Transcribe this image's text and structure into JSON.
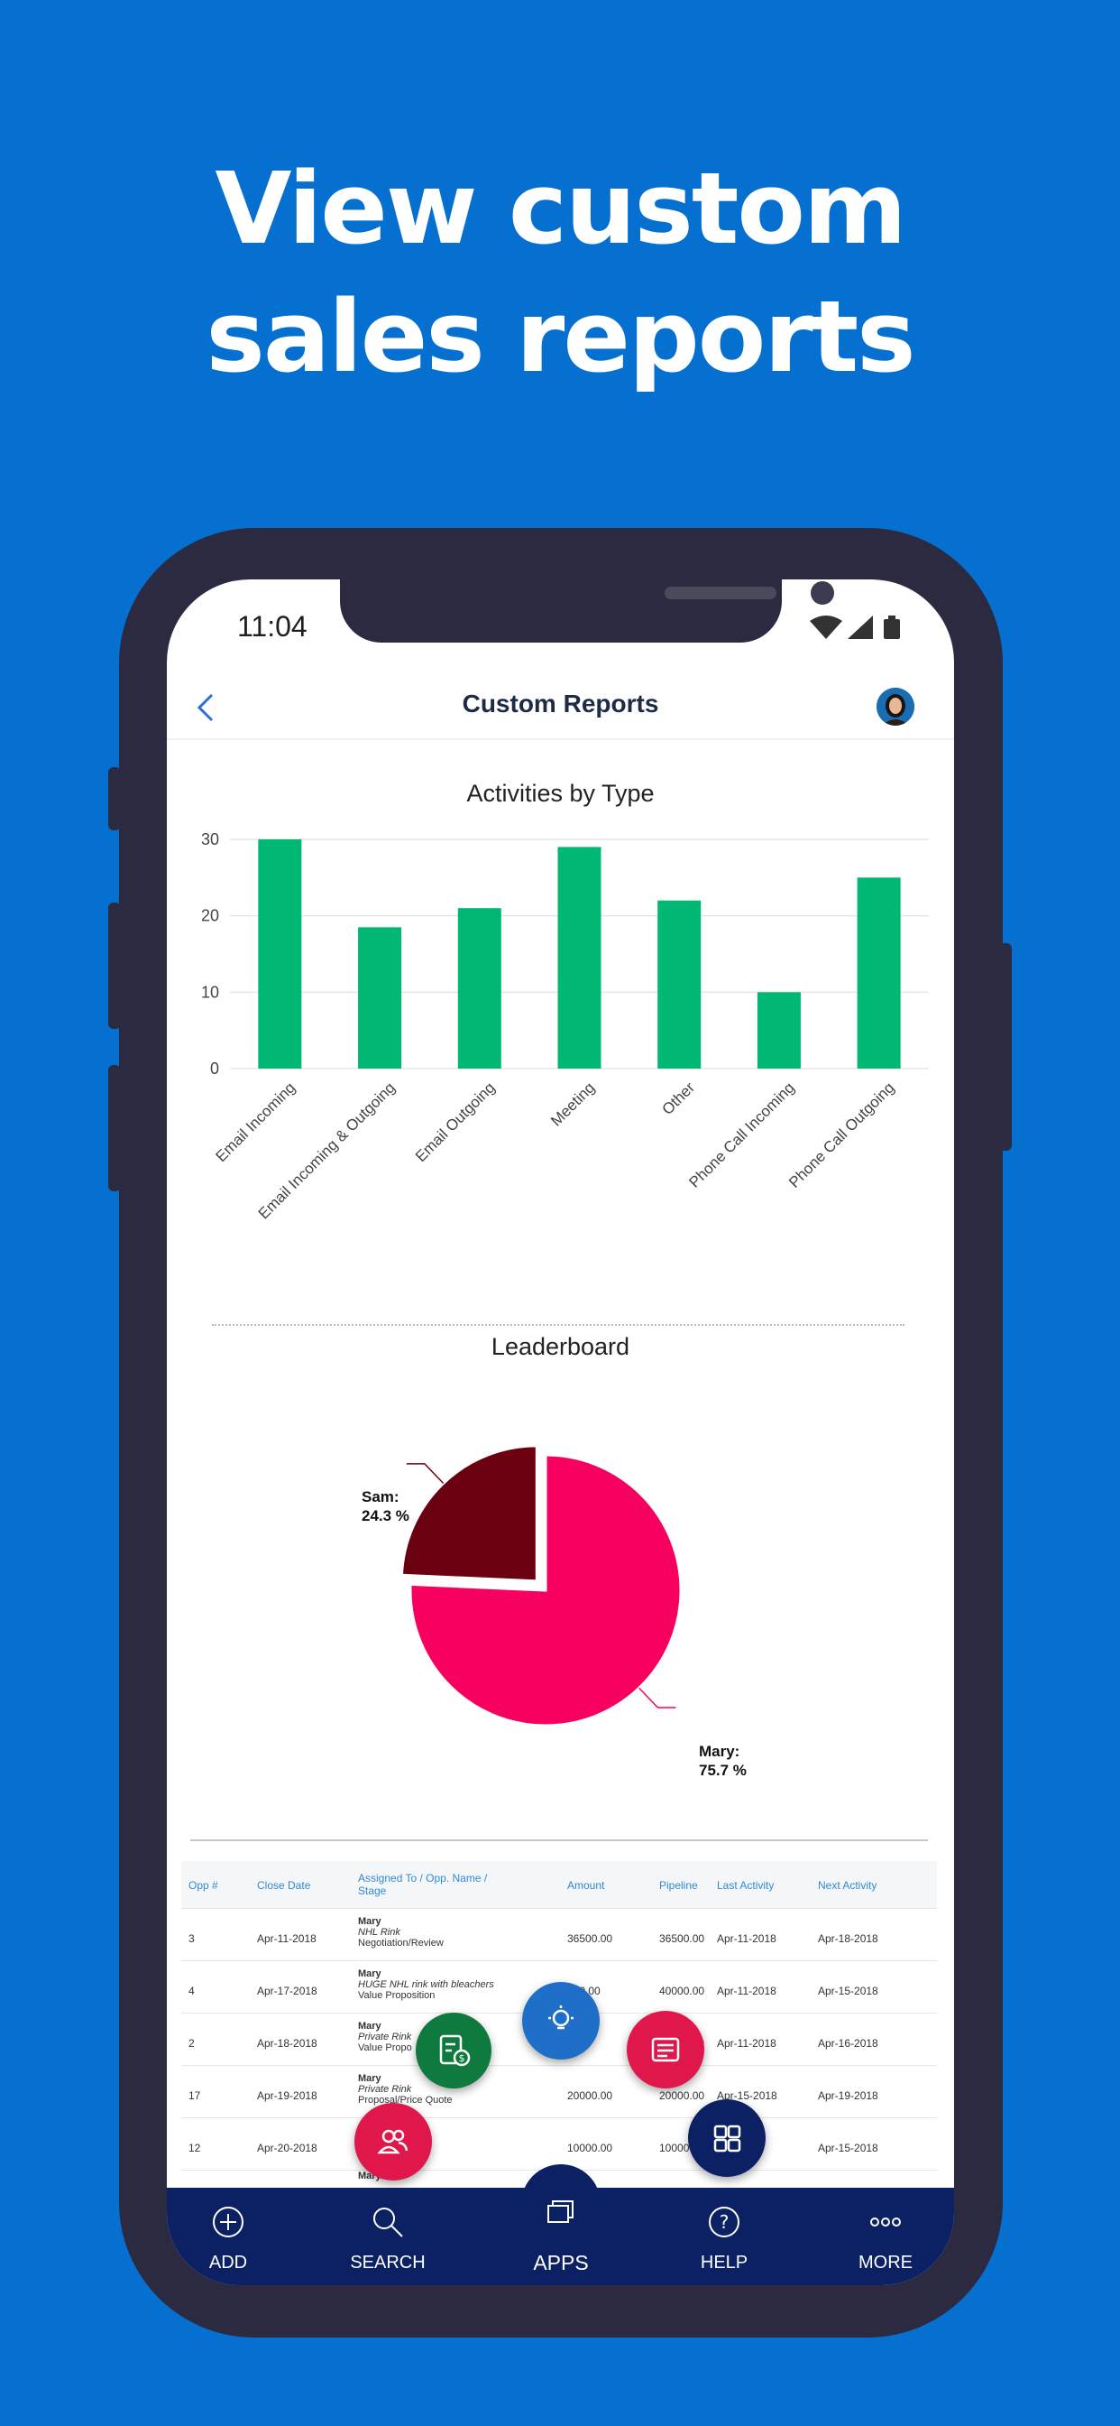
{
  "headline": {
    "line1": "View custom",
    "line2": "sales reports"
  },
  "status_bar": {
    "time": "11:04"
  },
  "app_bar": {
    "title": "Custom Reports"
  },
  "chart_data": [
    {
      "type": "bar",
      "title": "Activities by Type",
      "categories": [
        "Email Incoming",
        "Email Incoming & Outgoing",
        "Email Outgoing",
        "Meeting",
        "Other",
        "Phone Call Incoming",
        "Phone Call Outgoing"
      ],
      "values": [
        30,
        18.5,
        21,
        29,
        22,
        10,
        25
      ],
      "ylim": [
        0,
        30
      ],
      "yticks": [
        "0",
        "10",
        "20",
        "30"
      ],
      "color": "#00b874",
      "grid": true
    },
    {
      "type": "pie",
      "title": "Leaderboard",
      "labels": [
        "Sam:",
        "Mary:"
      ],
      "values": [
        24.3,
        75.7
      ],
      "value_labels": [
        "24.3 %",
        "75.7 %"
      ],
      "colors": [
        "#6b0010",
        "#f70160"
      ]
    }
  ],
  "table": {
    "headers": [
      "Opp #",
      "Close Date",
      "Assigned To / Opp. Name / Stage",
      "Amount",
      "Pipeline",
      "Last Activity",
      "Next Activity"
    ],
    "rows": [
      {
        "opp": "3",
        "close": "Apr-11-2018",
        "name": "Mary",
        "opp_name": "NHL Rink",
        "stage": "Negotiation/Review",
        "amount": "36500.00",
        "pipeline": "36500.00",
        "last": "Apr-11-2018",
        "next": "Apr-18-2018"
      },
      {
        "opp": "4",
        "close": "Apr-17-2018",
        "name": "Mary",
        "opp_name": "HUGE NHL rink with bleachers",
        "stage": "Value Proposition",
        "amount": "100.00",
        "pipeline": "40000.00",
        "last": "Apr-11-2018",
        "next": "Apr-15-2018"
      },
      {
        "opp": "2",
        "close": "Apr-18-2018",
        "name": "Mary",
        "opp_name": "Private Rink",
        "stage": "Value Propo",
        "amount": ".00",
        "pipeline": "20000.00",
        "last": "Apr-11-2018",
        "next": "Apr-16-2018"
      },
      {
        "opp": "17",
        "close": "Apr-19-2018",
        "name": "Mary",
        "opp_name": "Private Rink",
        "stage": "Proposal/Price Quote",
        "amount": "20000.00",
        "pipeline": "20000.00",
        "last": "Apr-15-2018",
        "next": "Apr-19-2018"
      },
      {
        "opp": "12",
        "close": "Apr-20-2018",
        "name": "",
        "opp_name": "",
        "stage": "",
        "amount": "10000.00",
        "pipeline": "10000",
        "last": "18",
        "next": "Apr-15-2018"
      }
    ],
    "last_row_name": "Mary"
  },
  "fabs": [
    {
      "icon": "opportunity-icon",
      "color": "#0e7a3d"
    },
    {
      "icon": "lightbulb-icon",
      "color": "#1f6fc9"
    },
    {
      "icon": "list-icon",
      "color": "#e0174b"
    },
    {
      "icon": "contacts-icon",
      "color": "#e0174b"
    },
    {
      "icon": "dashboard-icon",
      "color": "#0c2163"
    }
  ],
  "nav": {
    "add": "ADD",
    "search": "SEARCH",
    "apps": "APPS",
    "help": "HELP",
    "more": "MORE"
  }
}
